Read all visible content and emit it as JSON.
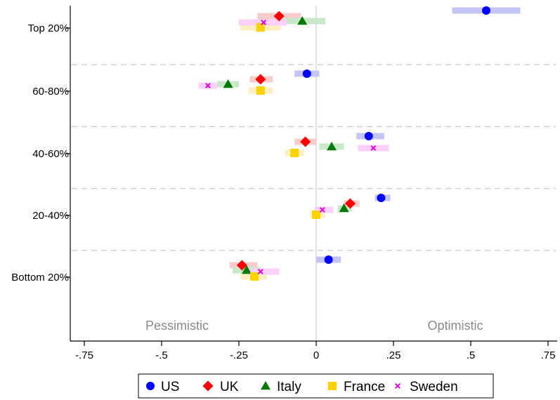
{
  "chart_data": {
    "type": "scatter",
    "categories": [
      "Top 20%",
      "60-80%",
      "40-60%",
      "20-40%",
      "Bottom 20%"
    ],
    "xlim": [
      -0.8,
      0.78
    ],
    "xticks": [
      -0.75,
      -0.5,
      -0.25,
      0,
      0.25,
      0.5,
      0.75
    ],
    "xtick_labels": [
      "-.75",
      "-.5",
      "-.25",
      "0",
      ".25",
      ".5",
      ".75"
    ],
    "region_labels": {
      "left": "Pessimistic",
      "right": "Optimistic"
    },
    "grid": "dashed horizontal separators between groups; vertical reference line at 0",
    "legend_position": "bottom",
    "series": [
      {
        "name": "US",
        "marker": "circle",
        "color": "#0000ff",
        "band_color": "#c4c4f5",
        "values": [
          0.55,
          -0.03,
          0.17,
          0.21,
          0.04
        ],
        "ci_low": [
          0.44,
          -0.07,
          0.13,
          0.19,
          0.0
        ],
        "ci_high": [
          0.66,
          0.01,
          0.22,
          0.24,
          0.08
        ]
      },
      {
        "name": "UK",
        "marker": "diamond",
        "color": "#ff0000",
        "band_color": "#f9cccc",
        "values": [
          -0.12,
          -0.18,
          -0.035,
          0.11,
          -0.24
        ],
        "ci_low": [
          -0.19,
          -0.215,
          -0.07,
          0.09,
          -0.28
        ],
        "ci_high": [
          -0.05,
          -0.14,
          0.0,
          0.14,
          -0.19
        ]
      },
      {
        "name": "Italy",
        "marker": "triangle",
        "color": "#007b00",
        "band_color": "#c9e7c9",
        "values": [
          -0.045,
          -0.285,
          0.05,
          0.09,
          -0.225
        ],
        "ci_low": [
          -0.12,
          -0.32,
          0.01,
          0.07,
          -0.27
        ],
        "ci_high": [
          0.03,
          -0.25,
          0.09,
          0.115,
          -0.18
        ]
      },
      {
        "name": "France",
        "marker": "square",
        "color": "#ffd200",
        "band_color": "#fcefc2",
        "values": [
          -0.18,
          -0.18,
          -0.07,
          0.0,
          -0.2
        ],
        "ci_low": [
          -0.245,
          -0.22,
          -0.1,
          -0.02,
          -0.245
        ],
        "ci_high": [
          -0.115,
          -0.14,
          -0.04,
          0.03,
          -0.16
        ]
      },
      {
        "name": "Sweden",
        "marker": "x",
        "color": "#e000e0",
        "band_color": "#fbd0fb",
        "values": [
          -0.17,
          -0.35,
          0.185,
          0.02,
          -0.18
        ],
        "ci_low": [
          -0.25,
          -0.38,
          0.135,
          -0.005,
          -0.22
        ],
        "ci_high": [
          -0.095,
          -0.32,
          0.235,
          0.055,
          -0.12
        ]
      }
    ]
  }
}
